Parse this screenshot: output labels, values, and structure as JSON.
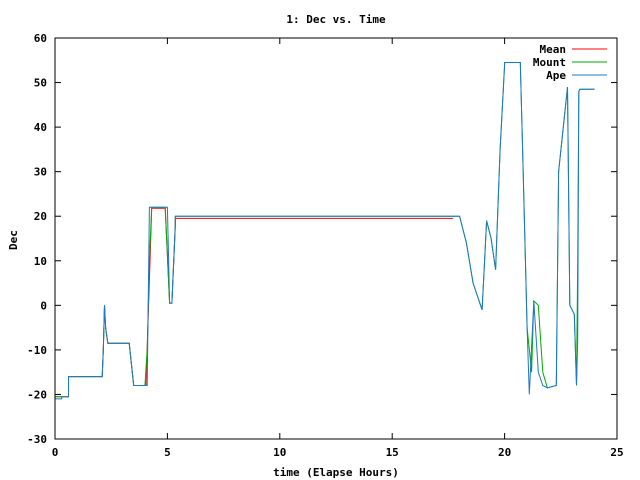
{
  "chart_data": {
    "type": "line",
    "title": "1: Dec vs. Time",
    "xlabel": "time (Elapse Hours)",
    "ylabel": "Dec",
    "xlim": [
      0,
      25
    ],
    "ylim": [
      -30,
      60
    ],
    "xticks": [
      0,
      5,
      10,
      15,
      20,
      25
    ],
    "yticks": [
      -30,
      -20,
      -10,
      0,
      10,
      20,
      30,
      40,
      50,
      60
    ],
    "grid": false,
    "legend_position": "top-right",
    "series": [
      {
        "name": "Mean",
        "color": "#ff0000",
        "x": [
          0.0,
          0.3,
          0.3,
          0.6,
          0.6,
          1.1,
          1.1,
          2.1,
          2.15,
          2.2,
          2.25,
          2.35,
          2.35,
          3.3,
          3.5,
          3.5,
          4.05,
          4.05,
          4.3,
          4.3,
          4.9,
          4.9,
          5.1,
          5.2,
          5.35,
          5.35,
          17.7
        ],
        "y": [
          -20.5,
          -20.5,
          -20.5,
          -20.5,
          -16.0,
          -16.0,
          -16.0,
          -16.0,
          -10.0,
          0.0,
          -5.0,
          -8.5,
          -8.5,
          -8.5,
          -18.0,
          -18.0,
          -18.0,
          -18.0,
          21.8,
          21.8,
          21.8,
          21.8,
          0.5,
          0.5,
          18.0,
          19.5,
          19.5
        ]
      },
      {
        "name": "Mount",
        "color": "#00aa00",
        "x": [
          0.0,
          0.3,
          0.3,
          0.6,
          0.6,
          1.1,
          1.1,
          2.1,
          2.15,
          2.2,
          2.25,
          2.35,
          2.35,
          3.3,
          3.5,
          3.5,
          4.0,
          4.1,
          4.2,
          4.3,
          4.9,
          4.9,
          5.1,
          5.2,
          5.35,
          5.35,
          18.0,
          18.3,
          18.6,
          19.0,
          19.2,
          19.4,
          19.6,
          19.8,
          20.0,
          20.0,
          20.7,
          20.8,
          21.0,
          21.2,
          21.3,
          21.5,
          21.7,
          21.9,
          22.3,
          22.4,
          22.8,
          22.9,
          23.1,
          23.2,
          23.25,
          23.3,
          23.35,
          23.4,
          23.4,
          24.0
        ],
        "y": [
          -20.5,
          -20.5,
          -20.5,
          -20.5,
          -16.0,
          -16.0,
          -16.0,
          -16.0,
          -10.0,
          0.0,
          -5.0,
          -8.5,
          -8.5,
          -8.5,
          -18.0,
          -18.0,
          -18.0,
          -10.0,
          10.0,
          22.0,
          22.0,
          22.0,
          0.5,
          0.5,
          18.0,
          20.0,
          20.0,
          14.0,
          5.0,
          -1.0,
          19.0,
          15.0,
          8.0,
          35.0,
          54.0,
          54.5,
          54.5,
          35.0,
          -5.0,
          -15.0,
          1.0,
          0.0,
          -15.0,
          -18.5,
          -18.0,
          30.0,
          49.0,
          0.0,
          -2.0,
          -18.0,
          10.0,
          48.0,
          48.5,
          48.5,
          48.5,
          48.5
        ]
      },
      {
        "name": "Ape",
        "color": "#1f77c8",
        "x": [
          0.0,
          0.3,
          0.3,
          0.6,
          0.6,
          1.1,
          1.1,
          2.1,
          2.15,
          2.2,
          2.25,
          2.35,
          2.35,
          3.3,
          3.5,
          3.5,
          4.1,
          4.2,
          4.3,
          4.9,
          4.9,
          5.0,
          5.1,
          5.2,
          5.35,
          5.35,
          18.0,
          18.3,
          18.6,
          19.0,
          19.2,
          19.4,
          19.6,
          19.8,
          20.0,
          20.0,
          20.7,
          20.8,
          21.0,
          21.1,
          21.3,
          21.5,
          21.7,
          21.9,
          22.3,
          22.4,
          22.8,
          22.9,
          23.1,
          23.2,
          23.25,
          23.3,
          23.35,
          23.4,
          23.4,
          24.0
        ],
        "y": [
          -21.0,
          -21.0,
          -20.5,
          -20.5,
          -16.0,
          -16.0,
          -16.0,
          -16.0,
          -10.0,
          0.0,
          -5.0,
          -8.5,
          -8.5,
          -8.5,
          -18.0,
          -18.0,
          -18.0,
          22.0,
          22.0,
          22.0,
          22.0,
          22.0,
          0.5,
          0.5,
          18.0,
          20.0,
          20.0,
          14.0,
          5.0,
          -1.0,
          19.0,
          15.0,
          8.0,
          35.0,
          54.0,
          54.5,
          54.5,
          35.0,
          -5.0,
          -20.0,
          1.0,
          -15.0,
          -18.0,
          -18.5,
          -18.0,
          30.0,
          49.0,
          0.0,
          -2.0,
          -18.0,
          -8.0,
          48.0,
          48.5,
          48.5,
          48.5,
          48.5
        ]
      }
    ]
  }
}
